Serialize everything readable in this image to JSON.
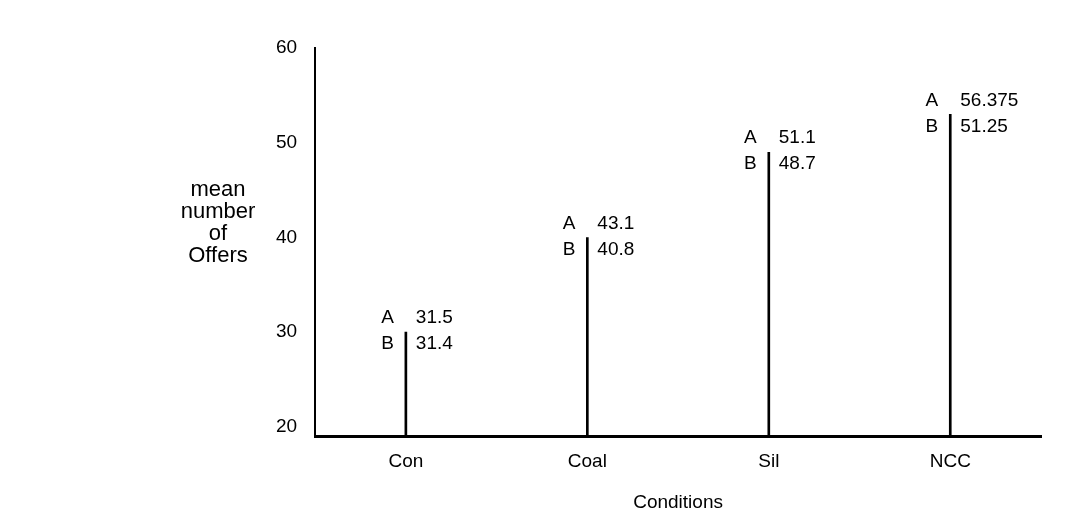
{
  "chart_data": {
    "type": "bar",
    "xlabel": "Conditions",
    "ylabel": "mean number of Offers",
    "categories": [
      "Con",
      "Coal",
      "Sil",
      "NCC"
    ],
    "values": [
      30,
      40,
      49,
      53
    ],
    "color": "#000000",
    "ylim": [
      19,
      60
    ],
    "yticks": [
      20,
      30,
      40,
      50,
      60
    ],
    "grid": false,
    "legend": false,
    "annotations": [
      {
        "text": "A 31.5",
        "x": "Con",
        "y": 30
      },
      {
        "text": "B 31.4",
        "x": "Con",
        "y": 30
      },
      {
        "text": "A 43.1",
        "x": "Coal",
        "y": 40
      },
      {
        "text": "B 40.8",
        "x": "Coal",
        "y": 40
      },
      {
        "text": "A 51.1",
        "x": "Sil",
        "y": 49
      },
      {
        "text": "B 48.7",
        "x": "Sil",
        "y": 49
      },
      {
        "text": "A 56.375",
        "x": "NCC",
        "y": 53
      },
      {
        "text": "B 51.25",
        "x": "NCC",
        "y": 53
      }
    ]
  }
}
